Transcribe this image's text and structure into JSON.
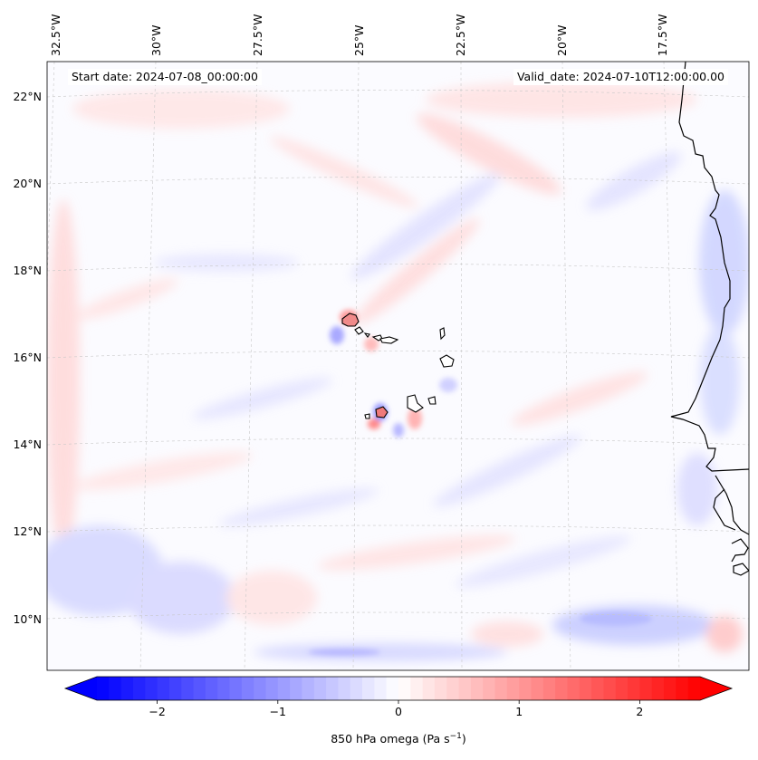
{
  "map": {
    "start_date_label": "Start date: 2024-07-08_00:00:00",
    "valid_date_label": "Valid_date: 2024-07-10T12:00:00.00",
    "lon_labels": [
      "32.5°W",
      "30°W",
      "27.5°W",
      "25°W",
      "22.5°W",
      "20°W",
      "17.5°W"
    ],
    "lat_labels": [
      "22°N",
      "20°N",
      "18°N",
      "16°N",
      "14°N",
      "12°N",
      "10°N"
    ],
    "extent": {
      "lon_min": -32.9,
      "lon_max": -15.8,
      "lat_min": 8.9,
      "lat_max": 22.8
    },
    "coastline_color": "#000000",
    "gridline_color": "#bbbbbb"
  },
  "colorbar": {
    "label_prefix": "850 hPa omega (Pa s",
    "label_exponent": "−1",
    "label_suffix": ")",
    "ticks": [
      "−2",
      "−1",
      "0",
      "1",
      "2"
    ],
    "range": [
      -2.5,
      2.5
    ],
    "tick_values": [
      -2,
      -1,
      0,
      1,
      2
    ],
    "colormap": "bwr",
    "low_color": "#0000ff",
    "mid_color": "#ffffff",
    "high_color": "#ff0000"
  }
}
